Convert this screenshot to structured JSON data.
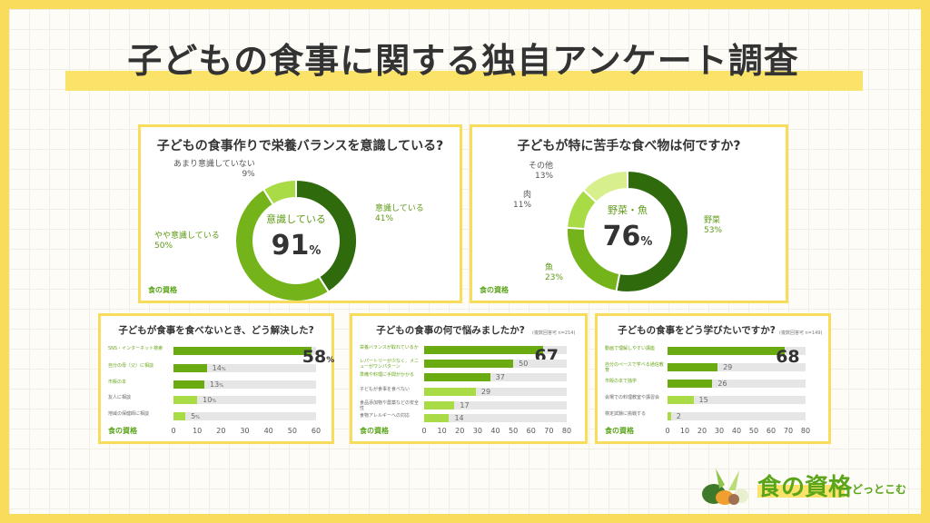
{
  "title": "子どもの食事に関する独自アンケート調査",
  "colors": {
    "border": "#f9dc5c",
    "dark_green": "#2f6a0c",
    "mid_green": "#74b41a",
    "light_green": "#a8db45",
    "pale_green": "#d8ef8e",
    "track": "#e6e6e6"
  },
  "logo": {
    "main": "食の資格",
    "sub": "どっとこむ",
    "icon": "vegetables-illustration"
  },
  "chart_data": [
    {
      "type": "pie",
      "title": "子どもの食事作りで栄養バランスを意識している?",
      "center_label": "意識している",
      "center_value": "91",
      "center_unit": "%",
      "slices": [
        {
          "name": "意識している",
          "value": 41,
          "label": "41%"
        },
        {
          "name": "やや意識している",
          "value": 50,
          "label": "50%"
        },
        {
          "name": "あまり意識していない",
          "value": 9,
          "label": "9%"
        }
      ]
    },
    {
      "type": "pie",
      "title": "子どもが特に苦手な食べ物は何ですか?",
      "center_label": "野菜・魚",
      "center_value": "76",
      "center_unit": "%",
      "slices": [
        {
          "name": "野菜",
          "value": 53,
          "label": "53%"
        },
        {
          "name": "魚",
          "value": 23,
          "label": "23%"
        },
        {
          "name": "肉",
          "value": 11,
          "label": "11%"
        },
        {
          "name": "その他",
          "value": 13,
          "label": "13%"
        }
      ]
    },
    {
      "type": "bar",
      "orientation": "horizontal",
      "title": "子どもが食事を食べないとき、どう解決した?",
      "unit": "%",
      "xlim": [
        0,
        60
      ],
      "ticks": [
        "0",
        "10",
        "20",
        "30",
        "40",
        "50",
        "60"
      ],
      "categories": [
        "SNS・インターネット検索",
        "自分の母（父）に相談",
        "市販の本",
        "友人に相談",
        "地域の保健師に相談"
      ],
      "values": [
        58,
        14,
        13,
        10,
        5
      ]
    },
    {
      "type": "bar",
      "orientation": "horizontal",
      "title": "子どもの食事の何で悩みましたか?",
      "note": "(複数回答可 n=214)",
      "unit": "",
      "xlim": [
        0,
        80
      ],
      "ticks": [
        "0",
        "10",
        "20",
        "30",
        "40",
        "50",
        "60",
        "70",
        "80"
      ],
      "categories": [
        "栄養バランスが取れているか",
        "レパートリーが少なく、メニューがワンパターン",
        "準備や料理に手間がかかる",
        "子どもが食事を食べない",
        "食品添加物や農薬などの安全性",
        "食物アレルギーへの対応"
      ],
      "values": [
        67,
        50,
        37,
        29,
        17,
        14
      ]
    },
    {
      "type": "bar",
      "orientation": "horizontal",
      "title": "子どもの食事をどう学びたいですか?",
      "note": "(複数回答可 n=149)",
      "unit": "",
      "xlim": [
        0,
        80
      ],
      "ticks": [
        "0",
        "10",
        "20",
        "30",
        "40",
        "50",
        "60",
        "70",
        "80"
      ],
      "categories": [
        "動画で理解しやすい講座",
        "自分のペースで学べる通信教育",
        "市販の本で独学",
        "会場での料理教室や講習会",
        "検定試験に挑戦する"
      ],
      "values": [
        68,
        29,
        26,
        15,
        2
      ]
    }
  ]
}
